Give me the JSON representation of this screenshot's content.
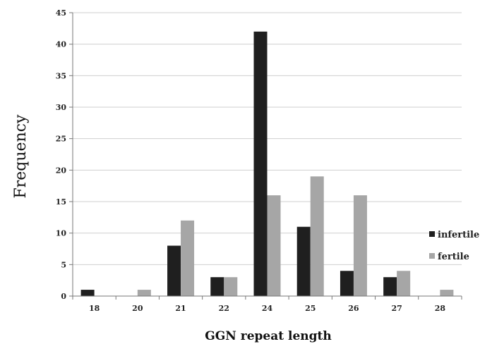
{
  "chart_data": {
    "type": "bar",
    "title": "",
    "xlabel": "GGN repeat length",
    "ylabel": "Frequency",
    "categories": [
      "18",
      "20",
      "21",
      "22",
      "24",
      "25",
      "26",
      "27",
      "28"
    ],
    "series": [
      {
        "name": "infertile",
        "color": "#1f1f1f",
        "values": [
          1,
          0,
          8,
          3,
          42,
          11,
          4,
          3,
          0
        ]
      },
      {
        "name": "fertile",
        "color": "#a6a6a6",
        "values": [
          0,
          1,
          12,
          3,
          16,
          19,
          16,
          4,
          1
        ]
      }
    ],
    "ylim": [
      0,
      45
    ],
    "yticks": [
      "0",
      "5",
      "10",
      "15",
      "20",
      "25",
      "30",
      "35",
      "40",
      "45"
    ],
    "grid": true,
    "legend_position": "right"
  }
}
